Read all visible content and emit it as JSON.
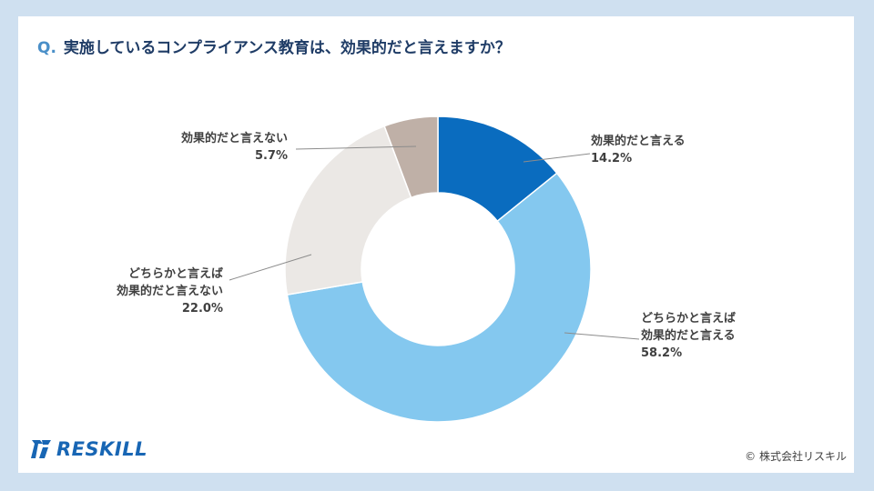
{
  "title": {
    "prefix": "Q.",
    "text": "実施しているコンプライアンス教育は、効果的だと言えますか？"
  },
  "chart_data": {
    "type": "pie",
    "variant": "donut",
    "title": "実施しているコンプライアンス教育は、効果的だと言えますか？",
    "slices": [
      {
        "label_lines": [
          "効果的だと言える"
        ],
        "value": 14.2,
        "value_label": "14.2%",
        "color": "#0a6cbf"
      },
      {
        "label_lines": [
          "どちらかと言えば",
          "効果的だと言える"
        ],
        "value": 58.2,
        "value_label": "58.2%",
        "color": "#84c8ef"
      },
      {
        "label_lines": [
          "どちらかと言えば",
          "効果的だと言えない"
        ],
        "value": 22.0,
        "value_label": "22.0%",
        "color": "#ebe8e5"
      },
      {
        "label_lines": [
          "効果的だと言えない"
        ],
        "value": 5.7,
        "value_label": "5.7%",
        "color": "#bfb0a7"
      }
    ]
  },
  "footer": {
    "logo_text": "RESKILL",
    "copyright": "© 株式会社リスキル"
  },
  "colors": {
    "brand": "#1866b4",
    "title": "#1f3c66",
    "background": "#cfe0f0"
  }
}
